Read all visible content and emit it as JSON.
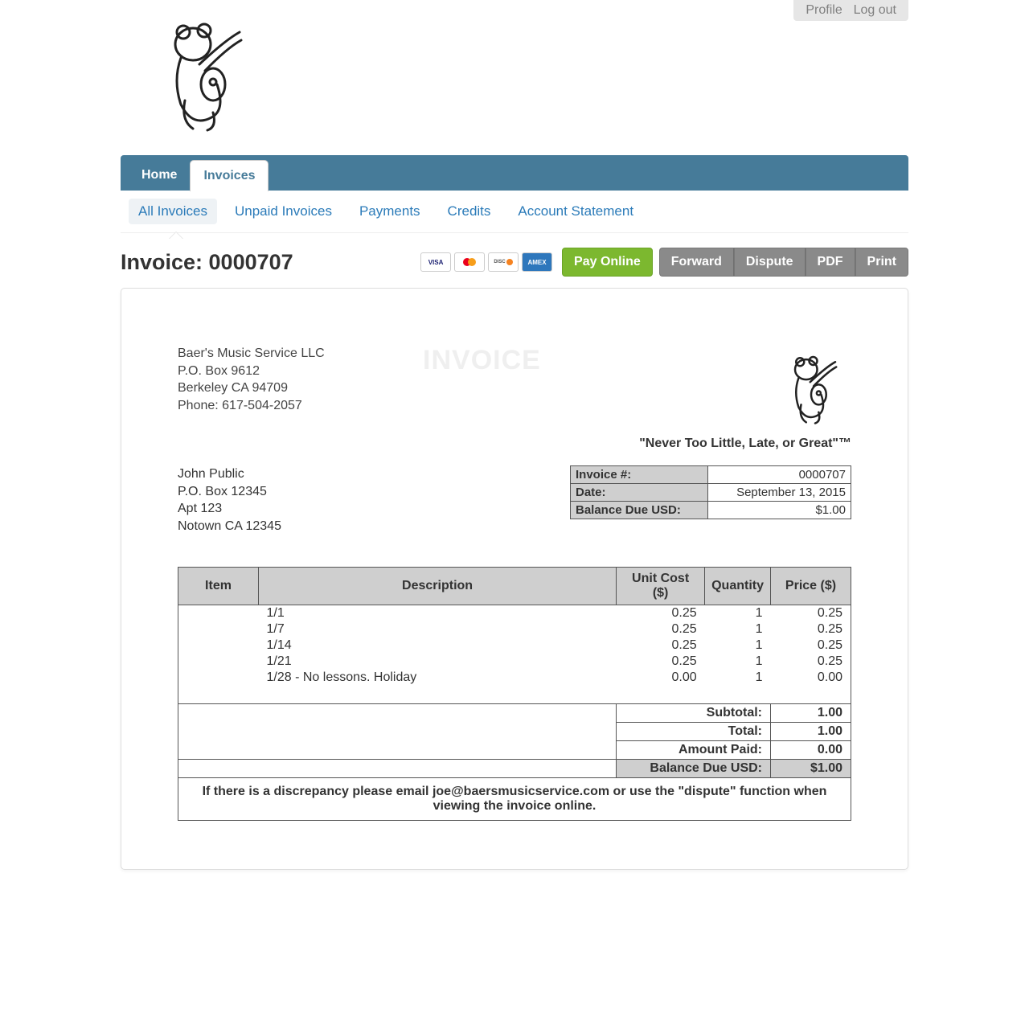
{
  "colors": {
    "nav_bg": "#467b99",
    "link": "#2b7bb9",
    "btn_green": "#7cb82f",
    "btn_gray": "#8a8a8a",
    "table_header_bg": "#cfcfcf",
    "watermark": "#efefef"
  },
  "top_links": {
    "profile": "Profile",
    "logout": "Log out"
  },
  "main_nav": {
    "home": "Home",
    "invoices": "Invoices",
    "active": "invoices"
  },
  "sub_nav": {
    "all": "All Invoices",
    "unpaid": "Unpaid Invoices",
    "payments": "Payments",
    "credits": "Credits",
    "statement": "Account Statement",
    "active": "all"
  },
  "page_title_prefix": "Invoice: ",
  "invoice_number_display": "0000707",
  "payment_cards": [
    "visa",
    "mastercard",
    "discover",
    "amex"
  ],
  "actions": {
    "pay_online": "Pay Online",
    "forward": "Forward",
    "dispute": "Dispute",
    "pdf": "PDF",
    "print": "Print"
  },
  "company": {
    "name": "Baer's Music Service LLC",
    "line1": "P.O. Box 9612",
    "line2": "Berkeley CA  94709",
    "phone_label": "Phone: 617-504-2057"
  },
  "watermark": "INVOICE",
  "tagline": "\"Never Too Little, Late, or Great\"™",
  "meta": {
    "labels": {
      "invoice_no": "Invoice #:",
      "date": "Date:",
      "balance_due": "Balance Due USD:"
    },
    "invoice_no": "0000707",
    "date": "September 13, 2015",
    "balance_due": "$1.00"
  },
  "bill_to": {
    "name": "John Public",
    "line1": "P.O. Box 12345",
    "line2": "Apt 123",
    "line3": "Notown CA  12345"
  },
  "items_table": {
    "columns": {
      "item": "Item",
      "description": "Description",
      "unit_cost": "Unit Cost ($)",
      "quantity": "Quantity",
      "price": "Price ($)"
    },
    "rows": [
      {
        "item": "",
        "description": "1/1",
        "unit_cost": "0.25",
        "quantity": "1",
        "price": "0.25"
      },
      {
        "item": "",
        "description": "1/7",
        "unit_cost": "0.25",
        "quantity": "1",
        "price": "0.25"
      },
      {
        "item": "",
        "description": "1/14",
        "unit_cost": "0.25",
        "quantity": "1",
        "price": "0.25"
      },
      {
        "item": "",
        "description": "1/21",
        "unit_cost": "0.25",
        "quantity": "1",
        "price": "0.25"
      },
      {
        "item": "",
        "description": "1/28 - No lessons. Holiday",
        "unit_cost": "0.00",
        "quantity": "1",
        "price": "0.00"
      }
    ]
  },
  "summary": {
    "subtotal_label": "Subtotal:",
    "subtotal": "1.00",
    "total_label": "Total:",
    "total": "1.00",
    "amount_paid_label": "Amount Paid:",
    "amount_paid": "0.00",
    "balance_due_label": "Balance Due USD:",
    "balance_due": "$1.00"
  },
  "footer_note": "If there is a discrepancy please email joe@baersmusicservice.com or use the \"dispute\" function when viewing the invoice online."
}
